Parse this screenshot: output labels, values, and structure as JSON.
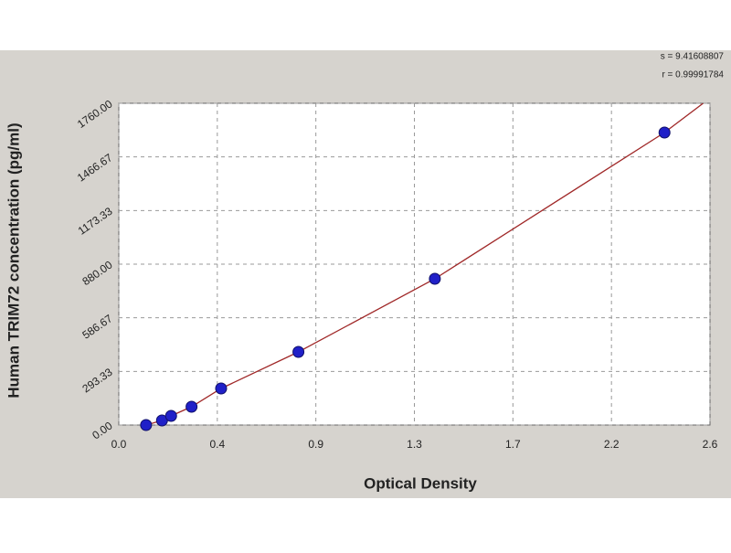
{
  "chart_data": {
    "type": "scatter",
    "x_label": "Optical Density",
    "y_label": "Human TRIM72 concentration (pg/ml)",
    "annotations": [
      "s = 9.41608807",
      "r = 0.99991784"
    ],
    "xlim": [
      0,
      2.6
    ],
    "ylim": [
      0,
      1760
    ],
    "xticks": [
      {
        "value": 0,
        "label": "0.0"
      },
      {
        "value": 0.4333,
        "label": "0.4"
      },
      {
        "value": 0.8667,
        "label": "0.9"
      },
      {
        "value": 1.3,
        "label": "1.3"
      },
      {
        "value": 1.7333,
        "label": "1.7"
      },
      {
        "value": 2.1667,
        "label": "2.2"
      },
      {
        "value": 2.6,
        "label": "2.6"
      }
    ],
    "yticks": [
      {
        "value": 0,
        "label": "0.00"
      },
      {
        "value": 293.33,
        "label": "293.33"
      },
      {
        "value": 586.67,
        "label": "586.67"
      },
      {
        "value": 880,
        "label": "880.00"
      },
      {
        "value": 1173.33,
        "label": "1173.33"
      },
      {
        "value": 1466.67,
        "label": "1466.67"
      },
      {
        "value": 1760,
        "label": "1760.00"
      }
    ],
    "grid": true,
    "points": {
      "color": "#2020c8",
      "x": [
        0.12,
        0.19,
        0.23,
        0.32,
        0.45,
        0.79,
        1.39,
        2.4
      ],
      "values": [
        0,
        25,
        50,
        100,
        200,
        400,
        800,
        1600
      ]
    },
    "fit": {
      "color": "#a02828",
      "x": [
        0.1,
        0.12,
        0.19,
        0.23,
        0.32,
        0.45,
        0.79,
        1.39,
        2.4,
        2.57
      ],
      "values": [
        -10,
        0,
        25,
        50,
        100,
        200,
        400,
        800,
        1600,
        1760
      ]
    }
  }
}
